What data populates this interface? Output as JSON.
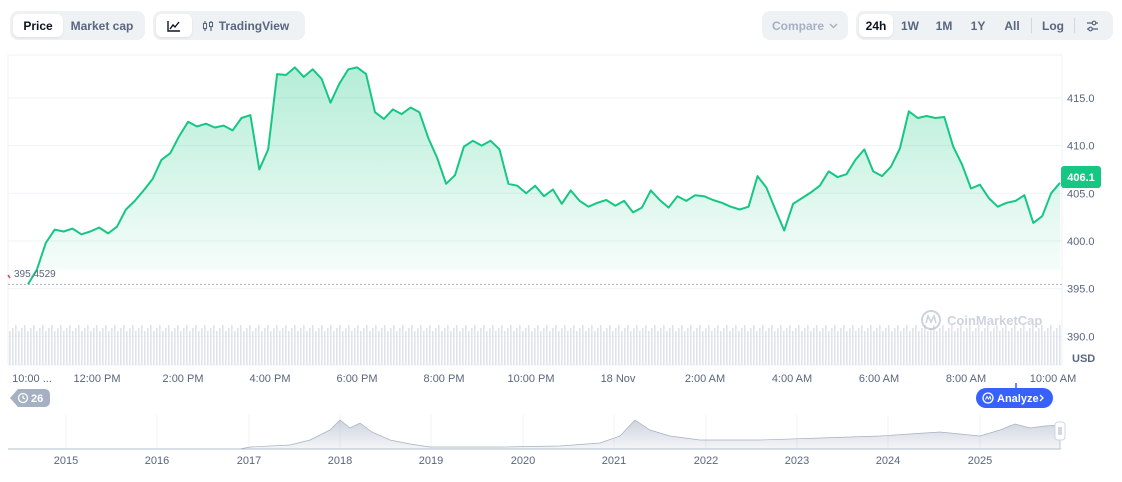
{
  "toolbar": {
    "type_tabs": [
      {
        "label": "Price",
        "active": true
      },
      {
        "label": "Market cap",
        "active": false
      }
    ],
    "view_tabs": [
      {
        "icon": "line-chart-icon",
        "active": true
      },
      {
        "icon": "candlestick-icon",
        "label": "TradingView",
        "active": false
      }
    ],
    "compare_label": "Compare",
    "ranges": [
      "24h",
      "1W",
      "1M",
      "1Y",
      "All"
    ],
    "active_range": "24h",
    "log_label": "Log",
    "settings_icon": "sliders-icon"
  },
  "main_chart": {
    "currency_label": "USD",
    "y_ticks": [
      "415.0",
      "410.0",
      "405.0",
      "400.0",
      "395.0",
      "390.0"
    ],
    "x_ticks": [
      "10:00 ...",
      "12:00 PM",
      "2:00 PM",
      "4:00 PM",
      "6:00 PM",
      "8:00 PM",
      "10:00 PM",
      "18 Nov",
      "2:00 AM",
      "4:00 AM",
      "6:00 AM",
      "8:00 AM",
      "10:00 AM"
    ],
    "open_price_label": "395.4529",
    "current_price_label": "406.1",
    "watermark": "CoinMarketCap",
    "events_badge": "26",
    "analyze_label": "Analyze",
    "colors": {
      "line": "#16c784",
      "current_badge": "#16c784",
      "analyze_button": "#3861fb",
      "gray_badge": "#a6b0c3"
    }
  },
  "navigator": {
    "year_labels": [
      "2015",
      "2016",
      "2017",
      "2018",
      "2019",
      "2020",
      "2021",
      "2022",
      "2023",
      "2024",
      "2025"
    ]
  },
  "chart_data": {
    "type": "area",
    "x_labels": [
      "10:00 ...",
      "12:00 PM",
      "2:00 PM",
      "4:00 PM",
      "6:00 PM",
      "8:00 PM",
      "10:00 PM",
      "18 Nov",
      "2:00 AM",
      "4:00 AM",
      "6:00 AM",
      "8:00 AM",
      "10:00 AM"
    ],
    "ylabel": "USD",
    "ylim": [
      387.0,
      419.5
    ],
    "baseline": 395.4529,
    "last": 406.1,
    "series": [
      {
        "values": [
          395.45,
          397.0,
          399.8,
          401.2,
          401.0,
          401.3,
          400.7,
          401.0,
          401.4,
          400.8,
          401.5,
          403.3,
          404.2,
          405.3,
          406.5,
          408.5,
          409.2,
          411.0,
          412.5,
          412.0,
          412.3,
          411.9,
          412.1,
          411.6,
          412.9,
          413.2,
          407.5,
          409.6,
          417.5,
          417.4,
          418.2,
          417.2,
          418.0,
          417.0,
          414.5,
          416.5,
          418.0,
          418.2,
          417.5,
          413.5,
          412.8,
          413.8,
          413.3,
          414.0,
          413.5,
          410.8,
          408.7,
          406.0,
          406.9,
          409.9,
          410.5,
          410.0,
          410.5,
          409.6,
          406.0,
          405.8,
          405.0,
          405.8,
          404.7,
          405.4,
          403.9,
          405.3,
          404.2,
          403.6,
          404.0,
          404.3,
          403.7,
          404.2,
          403.0,
          403.5,
          405.3,
          404.3,
          403.5,
          404.7,
          404.2,
          404.8,
          404.7,
          404.3,
          404.0,
          403.6,
          403.3,
          403.6,
          406.8,
          405.6,
          403.3,
          401.1,
          403.9,
          404.5,
          405.1,
          405.8,
          407.3,
          406.7,
          407.0,
          408.5,
          409.6,
          407.3,
          406.8,
          407.8,
          409.7,
          413.6,
          412.9,
          413.1,
          412.9,
          413.0,
          409.9,
          408.0,
          405.5,
          405.9,
          404.5,
          403.6,
          404.0,
          404.2,
          404.8,
          401.9,
          402.6,
          405.0,
          406.1
        ]
      }
    ]
  }
}
